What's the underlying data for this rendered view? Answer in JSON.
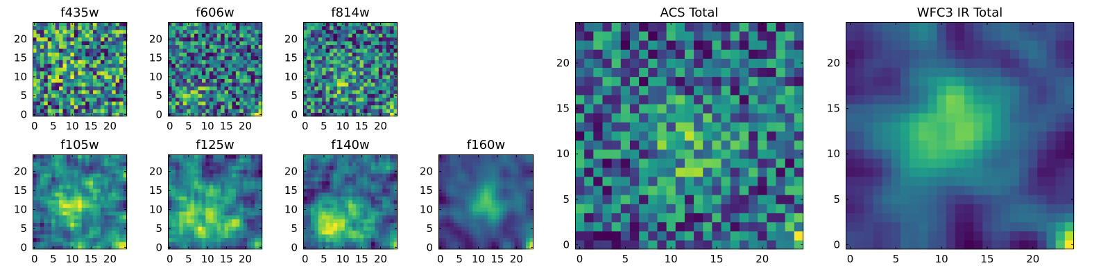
{
  "chart_data": [
    {
      "type": "heatmap",
      "title": "f435w",
      "colormap": "viridis",
      "grid_size": [
        25,
        25
      ],
      "xlim": [
        -0.5,
        24.5
      ],
      "ylim": [
        -0.5,
        24.5
      ],
      "x_ticks": [
        "0",
        "5",
        "10",
        "15",
        "20"
      ],
      "y_ticks": [
        "0",
        "5",
        "10",
        "15",
        "20"
      ],
      "seed": 11,
      "smooth": 0,
      "blob": [
        10,
        12,
        5,
        0.1
      ],
      "corner": 0.5
    },
    {
      "type": "heatmap",
      "title": "f606w",
      "colormap": "viridis",
      "grid_size": [
        25,
        25
      ],
      "xlim": [
        -0.5,
        24.5
      ],
      "ylim": [
        -0.5,
        24.5
      ],
      "x_ticks": [
        "0",
        "5",
        "10",
        "15",
        "20"
      ],
      "y_ticks": [
        "0",
        "5",
        "10",
        "15",
        "20"
      ],
      "seed": 23,
      "smooth": 0,
      "blob": [
        6,
        5,
        3,
        0.25
      ],
      "corner": 0.6
    },
    {
      "type": "heatmap",
      "title": "f814w",
      "colormap": "viridis",
      "grid_size": [
        25,
        25
      ],
      "xlim": [
        -0.5,
        24.5
      ],
      "ylim": [
        -0.5,
        24.5
      ],
      "x_ticks": [
        "0",
        "5",
        "10",
        "15",
        "20"
      ],
      "y_ticks": [
        "0",
        "5",
        "10",
        "15",
        "20"
      ],
      "seed": 37,
      "smooth": 0,
      "blob": [
        11,
        9,
        4,
        0.25
      ],
      "corner": 0.6
    },
    {
      "type": "heatmap",
      "title": "f105w",
      "colormap": "viridis",
      "grid_size": [
        25,
        25
      ],
      "xlim": [
        -0.5,
        24.5
      ],
      "ylim": [
        -0.5,
        24.5
      ],
      "x_ticks": [
        "0",
        "5",
        "10",
        "15",
        "20"
      ],
      "y_ticks": [
        "0",
        "5",
        "10",
        "15",
        "20"
      ],
      "seed": 41,
      "smooth": 1,
      "blob": [
        11,
        11,
        5,
        0.3
      ],
      "corner": 0.6
    },
    {
      "type": "heatmap",
      "title": "f125w",
      "colormap": "viridis",
      "grid_size": [
        25,
        25
      ],
      "xlim": [
        -0.5,
        24.5
      ],
      "ylim": [
        -0.5,
        24.5
      ],
      "x_ticks": [
        "0",
        "5",
        "10",
        "15",
        "20"
      ],
      "y_ticks": [
        "0",
        "5",
        "10",
        "15",
        "20"
      ],
      "seed": 53,
      "smooth": 1,
      "blob": [
        10,
        7,
        5,
        0.3
      ],
      "corner": 0.6
    },
    {
      "type": "heatmap",
      "title": "f140w",
      "colormap": "viridis",
      "grid_size": [
        25,
        25
      ],
      "xlim": [
        -0.5,
        24.5
      ],
      "ylim": [
        -0.5,
        24.5
      ],
      "x_ticks": [
        "0",
        "5",
        "10",
        "15",
        "20"
      ],
      "y_ticks": [
        "0",
        "5",
        "10",
        "15",
        "20"
      ],
      "seed": 67,
      "smooth": 1,
      "blob": [
        9,
        6,
        5,
        0.35
      ],
      "corner": 0.6
    },
    {
      "type": "heatmap",
      "title": "f160w",
      "colormap": "viridis",
      "grid_size": [
        25,
        25
      ],
      "xlim": [
        -0.5,
        24.5
      ],
      "ylim": [
        -0.5,
        24.5
      ],
      "x_ticks": [
        "0",
        "5",
        "10",
        "15",
        "20"
      ],
      "y_ticks": [
        "0",
        "5",
        "10",
        "15",
        "20"
      ],
      "seed": 79,
      "smooth": 2,
      "blob": [
        12,
        12,
        4,
        0.45
      ],
      "corner": 0.7
    },
    {
      "type": "heatmap",
      "title": "ACS Total",
      "colormap": "viridis",
      "grid_size": [
        25,
        25
      ],
      "xlim": [
        -0.5,
        24.5
      ],
      "ylim": [
        -0.5,
        24.5
      ],
      "x_ticks": [
        "0",
        "5",
        "10",
        "15",
        "20"
      ],
      "y_ticks": [
        "0",
        "5",
        "10",
        "15",
        "20"
      ],
      "seed": 97,
      "smooth": 0,
      "blob": [
        12,
        11,
        3,
        0.4
      ],
      "corner": 0.7
    },
    {
      "type": "heatmap",
      "title": "WFC3 IR Total",
      "colormap": "viridis",
      "grid_size": [
        25,
        25
      ],
      "xlim": [
        -0.5,
        24.5
      ],
      "ylim": [
        -0.5,
        24.5
      ],
      "x_ticks": [
        "0",
        "5",
        "10",
        "15",
        "20"
      ],
      "y_ticks": [
        "0",
        "5",
        "10",
        "15",
        "20"
      ],
      "seed": 101,
      "smooth": 2,
      "blob": [
        12,
        13,
        4,
        0.55
      ],
      "corner": 0.8
    }
  ]
}
